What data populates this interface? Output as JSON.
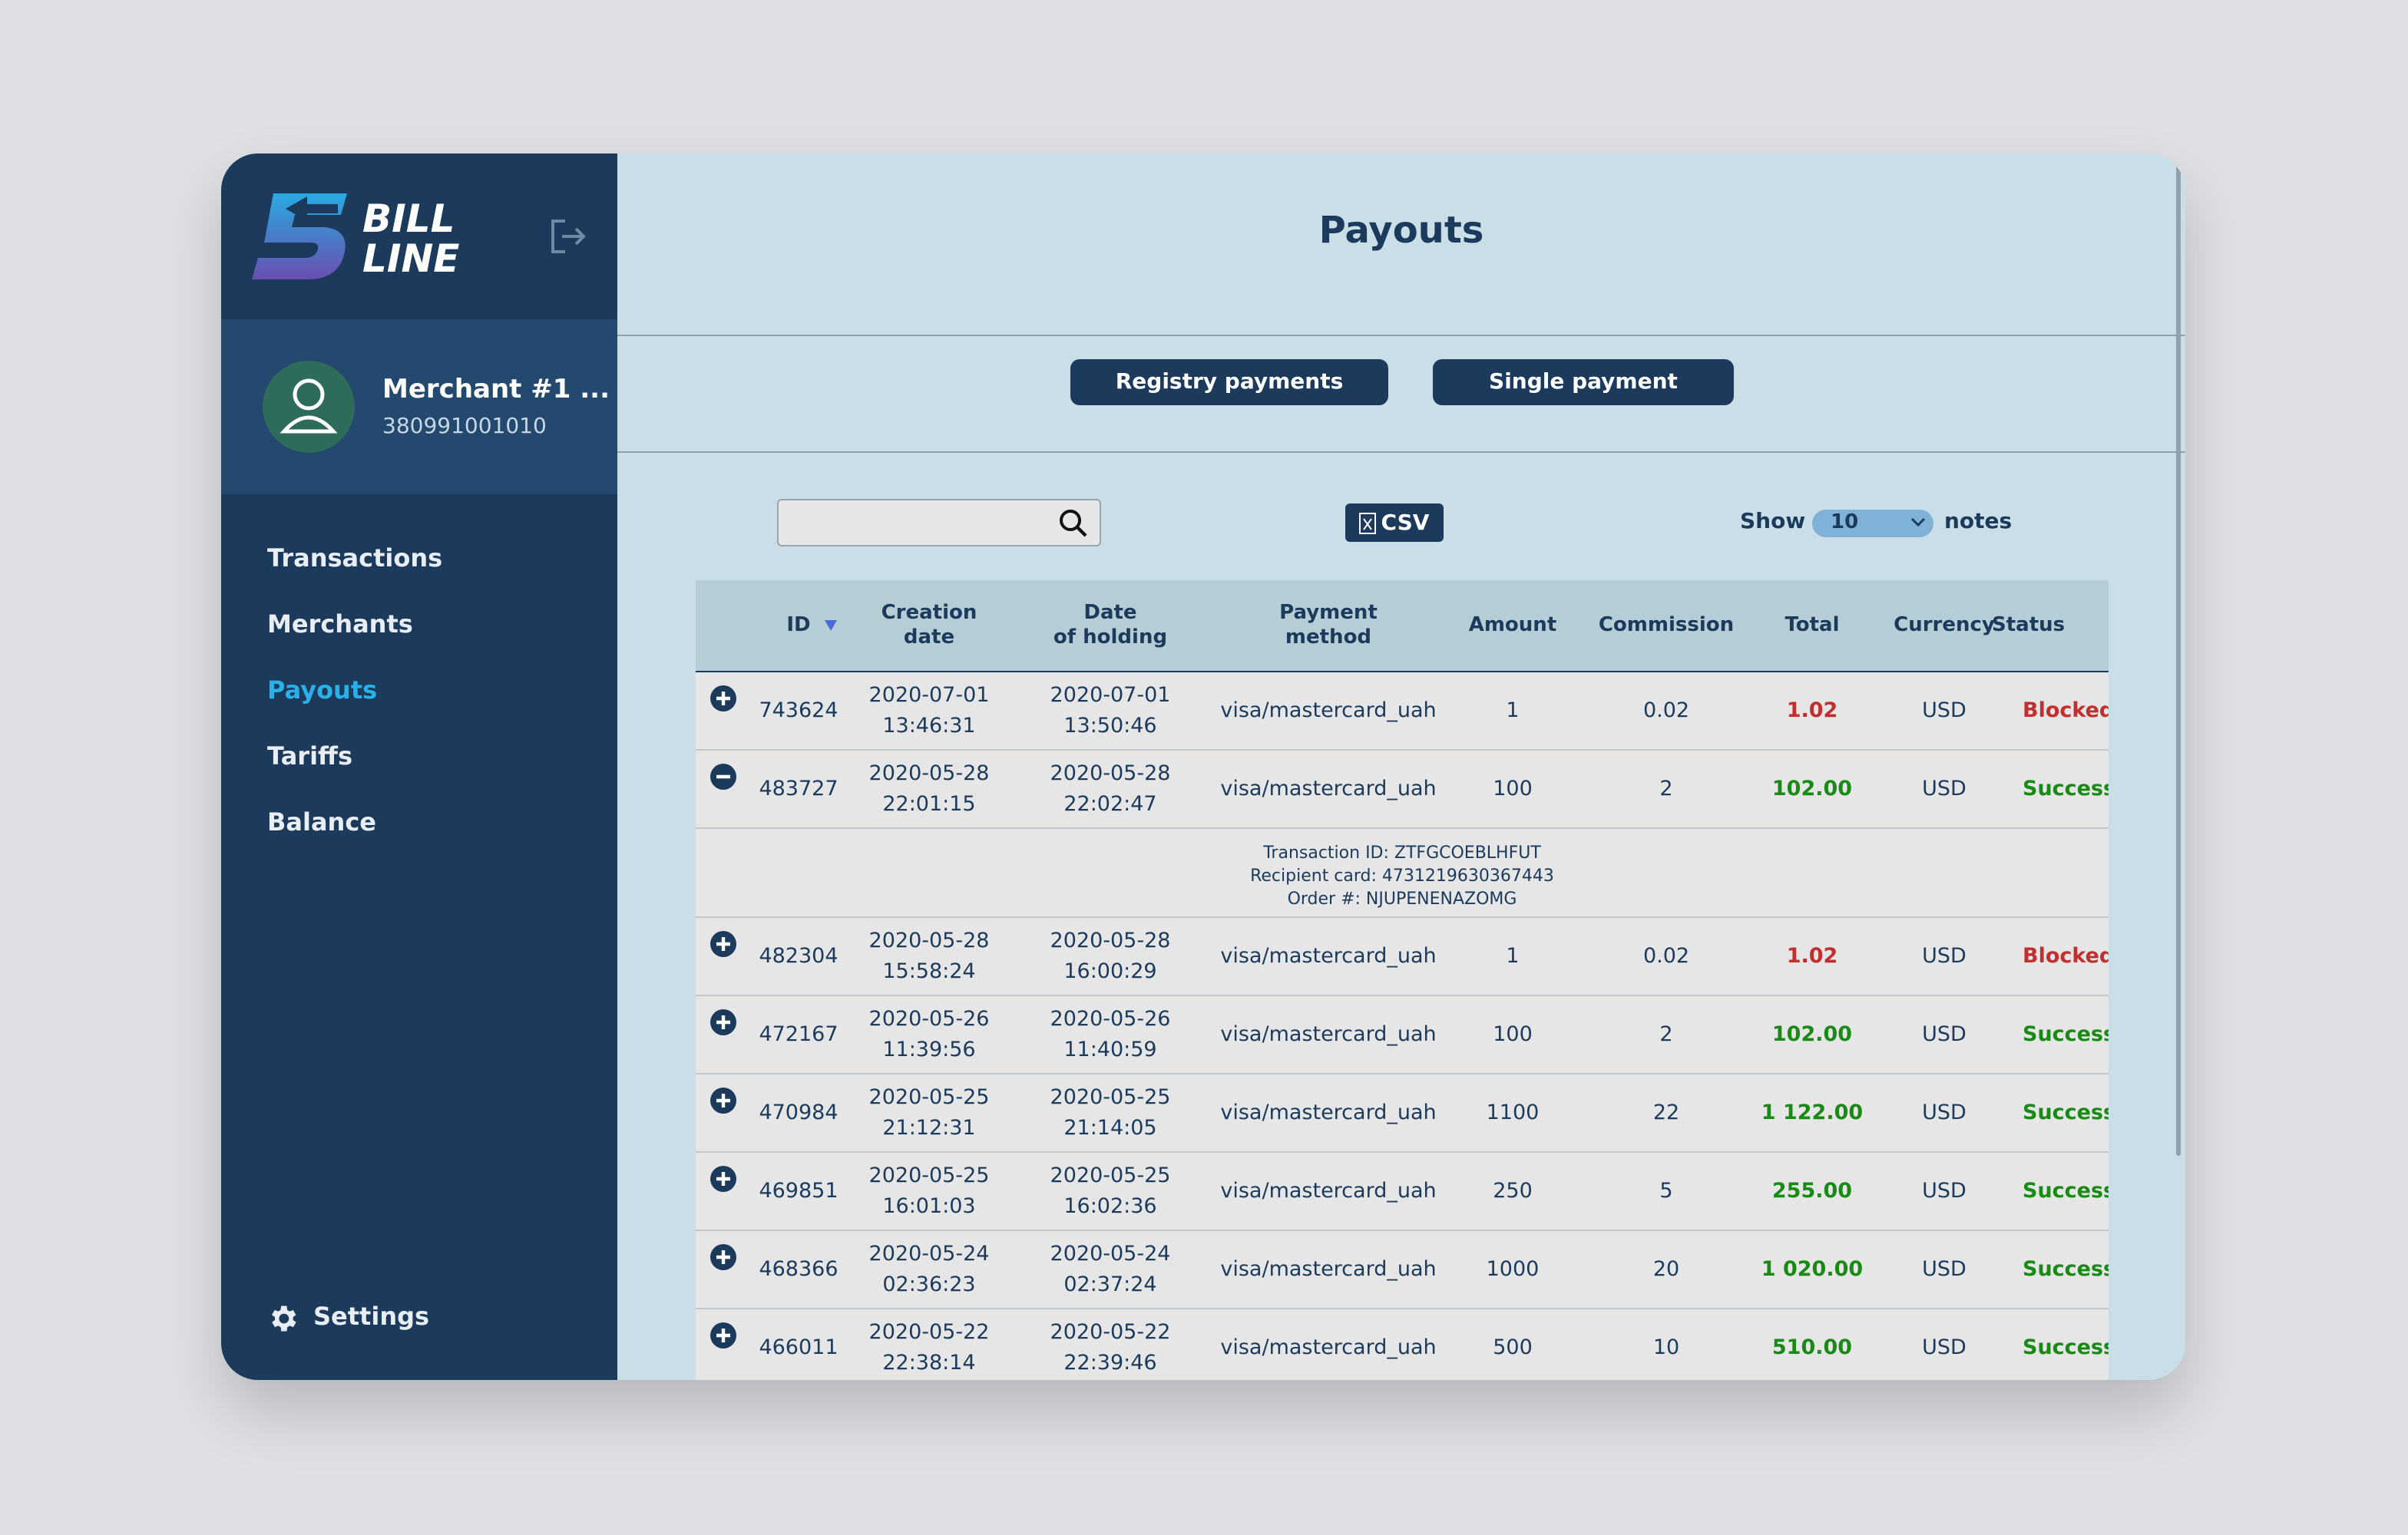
{
  "sidebar": {
    "logo": [
      "BILL",
      "LINE"
    ],
    "merchant": {
      "name": "Merchant #1 ...",
      "phone": "380991001010"
    },
    "nav": [
      "Transactions",
      "Merchants",
      "Payouts",
      "Tariffs",
      "Balance"
    ],
    "active": 2,
    "settings": "Settings"
  },
  "header": {
    "title": "Payouts"
  },
  "tabs": [
    "Registry payments",
    "Single payment"
  ],
  "toolbar": {
    "csv": "CSV",
    "show": "Show",
    "page_size": "10",
    "notes": "notes"
  },
  "table": {
    "columns": [
      "ID",
      "Creation\ndate",
      "Date\nof holding",
      "Payment\nmethod",
      "Amount",
      "Commission",
      "Total",
      "Currency",
      "Status"
    ],
    "rows": [
      [
        "743624",
        "2020-07-01\n13:46:31",
        "2020-07-01\n13:50:46",
        "visa/mastercard_uah",
        "1",
        "0.02",
        "1.02",
        "USD",
        "Blocked"
      ],
      [
        "483727",
        "2020-05-28\n22:01:15",
        "2020-05-28\n22:02:47",
        "visa/mastercard_uah",
        "100",
        "2",
        "102.00",
        "USD",
        "Success"
      ],
      [
        "482304",
        "2020-05-28\n15:58:24",
        "2020-05-28\n16:00:29",
        "visa/mastercard_uah",
        "1",
        "0.02",
        "1.02",
        "USD",
        "Blocked"
      ],
      [
        "472167",
        "2020-05-26\n11:39:56",
        "2020-05-26\n11:40:59",
        "visa/mastercard_uah",
        "100",
        "2",
        "102.00",
        "USD",
        "Success"
      ],
      [
        "470984",
        "2020-05-25\n21:12:31",
        "2020-05-25\n21:14:05",
        "visa/mastercard_uah",
        "1100",
        "22",
        "1 122.00",
        "USD",
        "Success"
      ],
      [
        "469851",
        "2020-05-25\n16:01:03",
        "2020-05-25\n16:02:36",
        "visa/mastercard_uah",
        "250",
        "5",
        "255.00",
        "USD",
        "Success"
      ],
      [
        "468366",
        "2020-05-24\n02:36:23",
        "2020-05-24\n02:37:24",
        "visa/mastercard_uah",
        "1000",
        "20",
        "1 020.00",
        "USD",
        "Success"
      ],
      [
        "466011",
        "2020-05-22\n22:38:14",
        "2020-05-22\n22:39:46",
        "visa/mastercard_uah",
        "500",
        "10",
        "510.00",
        "USD",
        "Success"
      ]
    ],
    "expanded": 1,
    "details": [
      "Transaction ID: ZTFGCOEBLHFUT",
      "Recipient card: 4731219630367443",
      "Order #: NJUPENENAZOMG"
    ]
  }
}
